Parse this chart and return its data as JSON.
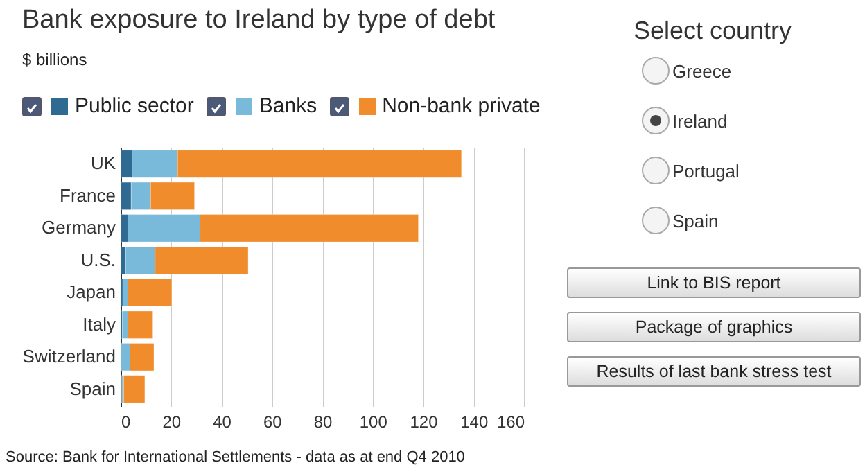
{
  "chart_data": [
    {
      "type": "bar",
      "orientation": "horizontal",
      "stacked": true,
      "title": "Bank exposure to Ireland by type of debt",
      "subtitle": "$ billions",
      "categories": [
        "UK",
        "France",
        "Germany",
        "U.S.",
        "Japan",
        "Italy",
        "Switzerland",
        "Spain"
      ],
      "series": [
        {
          "name": "Public sector",
          "color": "#2e6a92",
          "values": [
            4.6,
            4.2,
            2.9,
            2,
            0.9,
            0.7,
            null,
            0.5
          ]
        },
        {
          "name": "Banks",
          "color": "#79b9d9",
          "values": [
            18,
            7.7,
            28.6,
            11.7,
            2,
            2.2,
            3.7,
            0.7
          ]
        },
        {
          "name": "Non-bank private",
          "color": "#f08c2c",
          "values": [
            112.6,
            17.4,
            86.6,
            36.9,
            17.4,
            9.9,
            9.5,
            8.4
          ]
        }
      ],
      "xlim": [
        0,
        160
      ],
      "xticks": [
        0,
        20,
        40,
        60,
        80,
        100,
        120,
        140,
        160
      ],
      "grid": "x",
      "legend": "top",
      "annotations": [
        "Source: Bank for International Settlements - data as at end Q4 2010"
      ]
    },
    {
      "type": "other",
      "title": "Select country",
      "annotations": [
        "Greece",
        "Ireland",
        "Portugal",
        "Spain",
        "Link to BIS report",
        "Package of graphics",
        "Results of last bank stress test"
      ]
    }
  ]
}
